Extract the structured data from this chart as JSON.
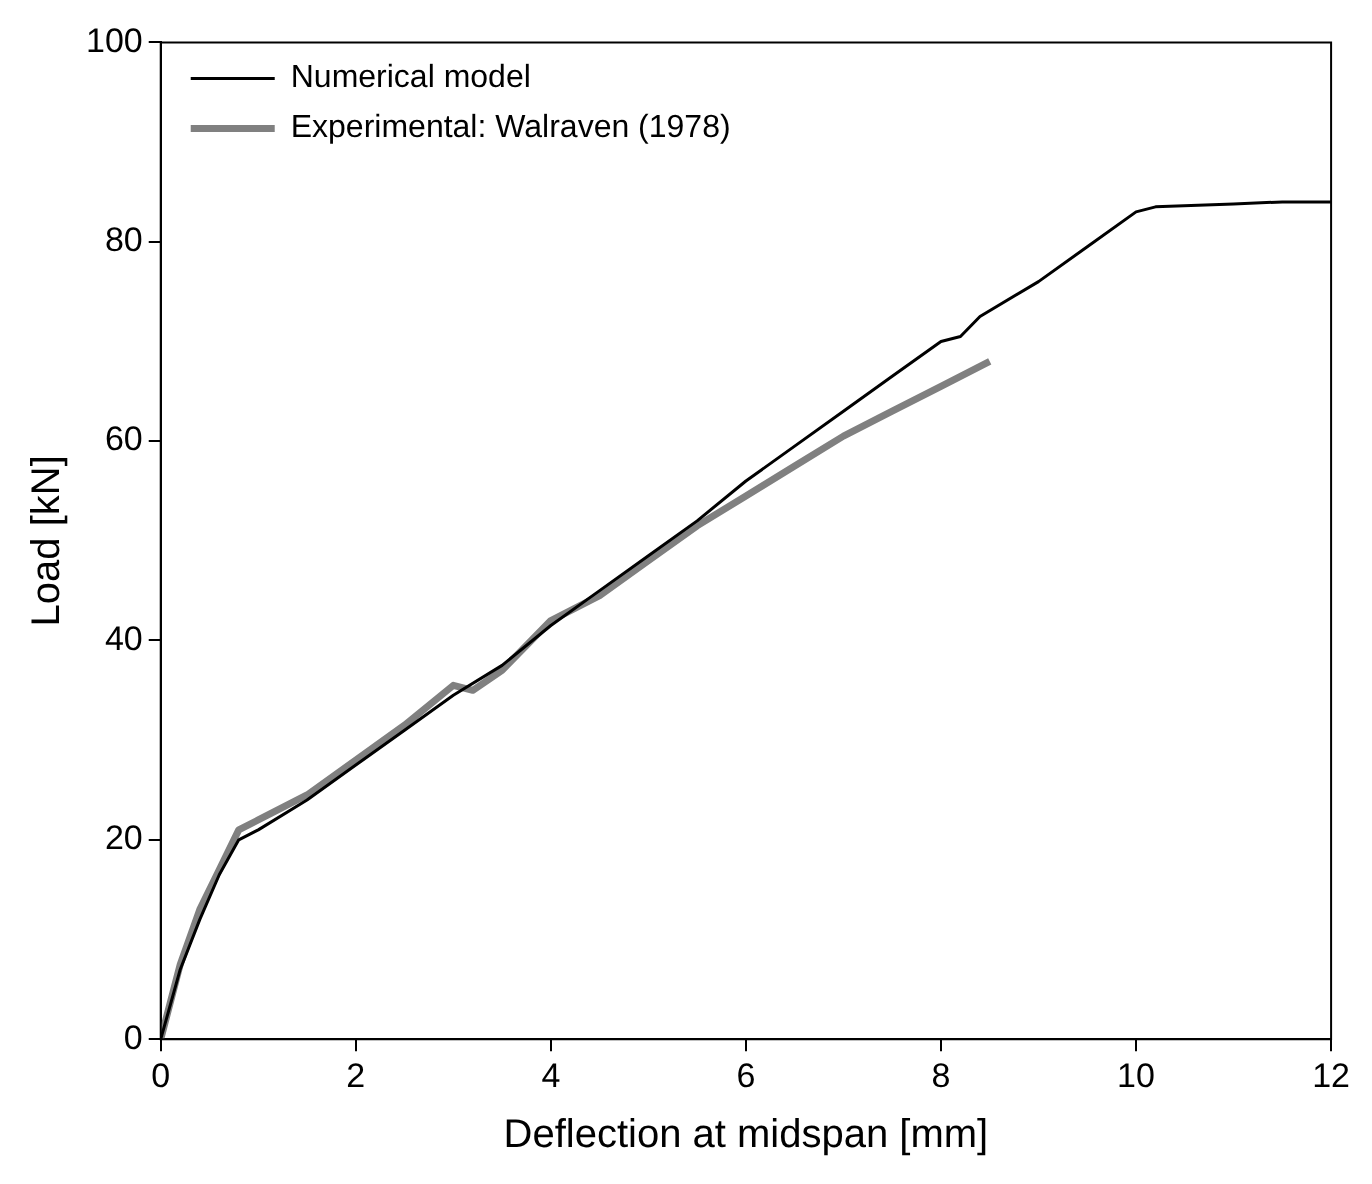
{
  "chart_data": {
    "type": "line",
    "xlabel": "Deflection at midspan [mm]",
    "ylabel": "Load [kN]",
    "xlim": [
      0,
      12
    ],
    "xticks": [
      0,
      2,
      4,
      6,
      8,
      10,
      12
    ],
    "ylim": [
      0,
      100
    ],
    "yticks": [
      0,
      20,
      40,
      60,
      80,
      100
    ],
    "grid": false,
    "legend": "top left",
    "marker": "none",
    "line_style": "solid",
    "series": [
      {
        "name": "Numerical model",
        "color": "#000000",
        "x": [
          0,
          0.2,
          0.4,
          0.6,
          0.8,
          1.0,
          1.5,
          2,
          2.5,
          3,
          3.5,
          4,
          4.5,
          5,
          5.5,
          6,
          6.5,
          7,
          7.5,
          8,
          8.2,
          8.4,
          9,
          9.5,
          10,
          10.2,
          11,
          11.5,
          12
        ],
        "values": [
          0,
          7,
          12,
          16.5,
          20,
          21,
          24,
          27.5,
          31,
          34.5,
          37.5,
          41.5,
          45,
          48.5,
          52,
          56,
          59.5,
          63,
          66.5,
          70,
          70.5,
          72.5,
          76,
          79.5,
          83,
          83.5,
          83.8,
          84,
          84
        ]
      },
      {
        "name": "Experimental: Walraven (1978)",
        "color": "#808080",
        "x": [
          0,
          0.2,
          0.4,
          0.6,
          0.8,
          1,
          1.5,
          2,
          2.5,
          3,
          3.2,
          3.5,
          4,
          4.5,
          5,
          5.5,
          6,
          6.5,
          7,
          7.5,
          8,
          8.5
        ],
        "values": [
          0,
          7.5,
          13,
          17,
          21,
          22,
          24.5,
          28,
          31.5,
          35.5,
          35,
          37,
          42,
          44.5,
          48,
          51.5,
          54.5,
          57.5,
          60.5,
          63,
          65.5,
          68
        ]
      }
    ]
  }
}
